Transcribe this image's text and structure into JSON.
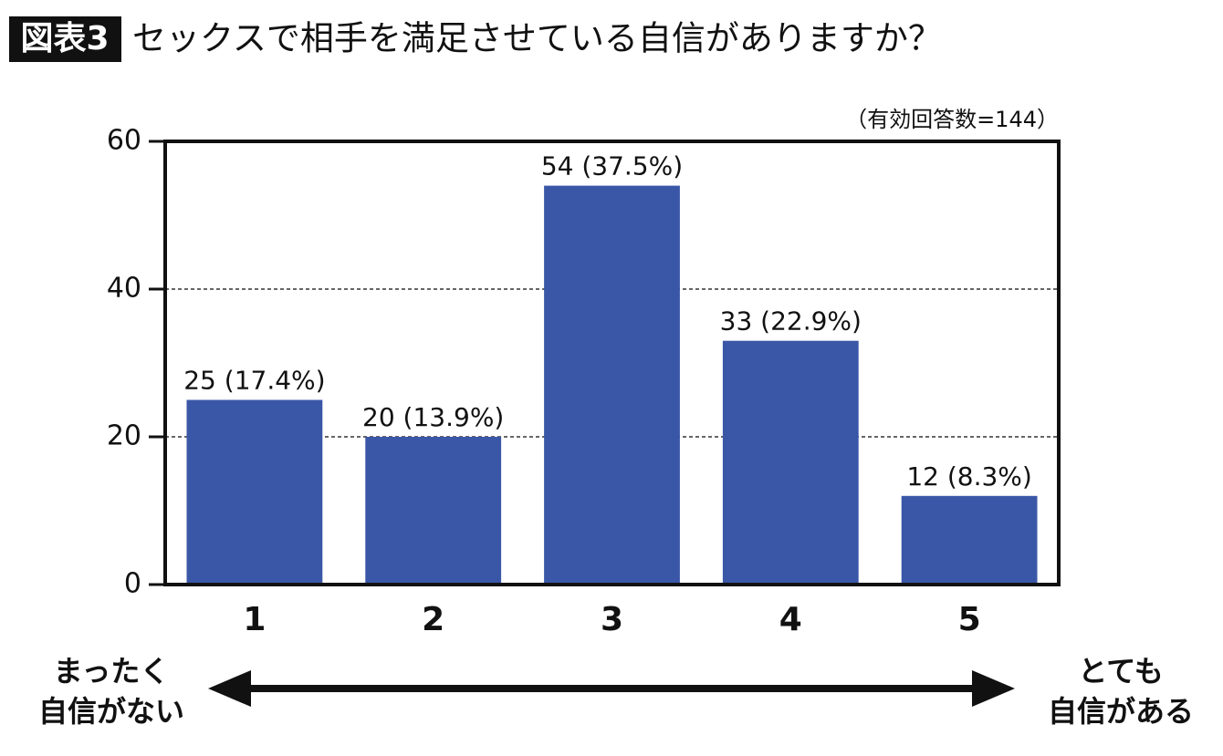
{
  "chart_data": {
    "type": "bar",
    "badge": "図表3",
    "title": "セックスで相手を満足させている自信がありますか？",
    "note": "（有効回答数=144）",
    "categories": [
      "1",
      "2",
      "3",
      "4",
      "5"
    ],
    "values": [
      25,
      20,
      54,
      33,
      12
    ],
    "value_labels": [
      "25 (17.4%)",
      "20 (13.9%)",
      "54 (37.5%)",
      "33 (22.9%)",
      "12 (8.3%)"
    ],
    "color": "#3a57a7",
    "ylim": [
      0,
      60
    ],
    "yticks": [
      0,
      20,
      40,
      60
    ],
    "grid": true,
    "scale_left": [
      "まったく",
      "自信がない"
    ],
    "scale_right": [
      "とても",
      "自信がある"
    ]
  }
}
